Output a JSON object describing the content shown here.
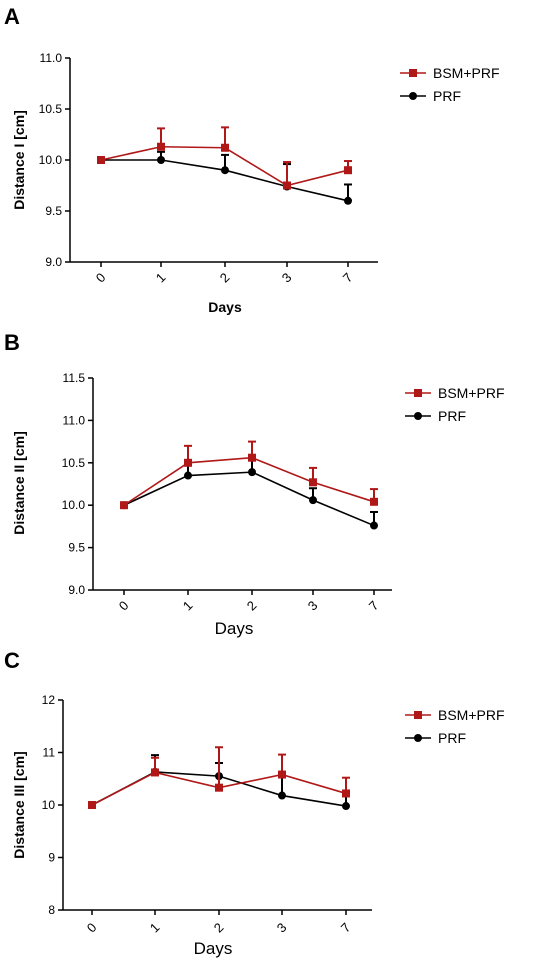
{
  "chart_data": [
    {
      "panel": "A",
      "type": "line",
      "categories": [
        "0",
        "1",
        "2",
        "3",
        "7"
      ],
      "xlabel": "Days",
      "ylabel": "Distance I [cm]",
      "ylim": [
        9.0,
        11.0
      ],
      "yticks": [
        "9.0",
        "9.5",
        "10.0",
        "10.5",
        "11.0"
      ],
      "grid": false,
      "legend": "top-right",
      "series": [
        {
          "name": "BSM+PRF",
          "color": "#b01818",
          "marker": "square",
          "values": [
            10.0,
            10.13,
            10.12,
            9.75,
            9.9
          ],
          "error": [
            0.0,
            0.18,
            0.2,
            0.23,
            0.09
          ]
        },
        {
          "name": "PRF",
          "color": "#000000",
          "marker": "circle",
          "values": [
            10.0,
            10.0,
            9.9,
            9.74,
            9.6
          ],
          "error": [
            0.0,
            0.08,
            0.15,
            0.22,
            0.16
          ]
        }
      ]
    },
    {
      "panel": "B",
      "type": "line",
      "categories": [
        "0",
        "1",
        "2",
        "3",
        "7"
      ],
      "xlabel": "Days",
      "ylabel": "Distance II [cm]",
      "ylim": [
        9.0,
        11.5
      ],
      "yticks": [
        "9.0",
        "9.5",
        "10.0",
        "10.5",
        "11.0",
        "11.5"
      ],
      "grid": false,
      "legend": "top-right",
      "series": [
        {
          "name": "BSM+PRF",
          "color": "#b01818",
          "marker": "square",
          "values": [
            10.0,
            10.5,
            10.56,
            10.27,
            10.04
          ],
          "error": [
            0.0,
            0.2,
            0.19,
            0.17,
            0.15
          ]
        },
        {
          "name": "PRF",
          "color": "#000000",
          "marker": "circle",
          "values": [
            10.0,
            10.35,
            10.39,
            10.06,
            9.76
          ],
          "error": [
            0.0,
            0.12,
            0.17,
            0.14,
            0.16
          ]
        }
      ]
    },
    {
      "panel": "C",
      "type": "line",
      "categories": [
        "0",
        "1",
        "2",
        "3",
        "7"
      ],
      "xlabel": "Days",
      "ylabel": "Distance III [cm]",
      "ylim": [
        8,
        12
      ],
      "yticks": [
        "8",
        "9",
        "10",
        "11",
        "12"
      ],
      "grid": false,
      "legend": "top-right",
      "series": [
        {
          "name": "BSM+PRF",
          "color": "#b01818",
          "marker": "square",
          "values": [
            10.0,
            10.62,
            10.33,
            10.58,
            10.22
          ],
          "error": [
            0.0,
            0.28,
            0.77,
            0.38,
            0.3
          ]
        },
        {
          "name": "PRF",
          "color": "#000000",
          "marker": "circle",
          "values": [
            10.0,
            10.63,
            10.55,
            10.18,
            9.98
          ],
          "error": [
            0.0,
            0.32,
            0.25,
            0.35,
            0.28
          ]
        }
      ]
    }
  ]
}
